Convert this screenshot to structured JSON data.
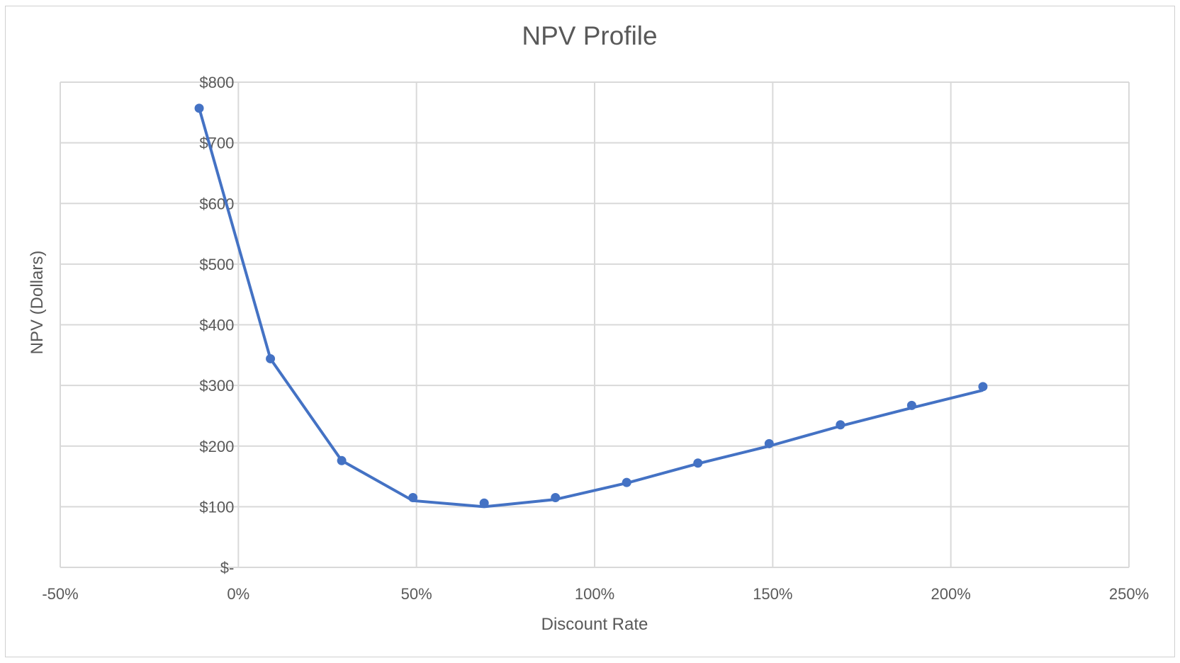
{
  "chart_data": {
    "type": "scatter",
    "title": "NPV Profile",
    "xlabel": "Discount Rate",
    "ylabel": "NPV (Dollars)",
    "xlim": [
      -0.5,
      2.5
    ],
    "ylim": [
      0,
      800
    ],
    "x_tick_values": [
      -0.5,
      0,
      0.5,
      1.0,
      1.5,
      2.0,
      2.5
    ],
    "x_tick_labels": [
      "-50%",
      "0%",
      "50%",
      "100%",
      "150%",
      "200%",
      "250%"
    ],
    "y_tick_values": [
      0,
      100,
      200,
      300,
      400,
      500,
      600,
      700,
      800
    ],
    "y_tick_labels": [
      "$-",
      "$100",
      "$200",
      "$300",
      "$400",
      "$500",
      "$600",
      "$700",
      "$800"
    ],
    "grid": true,
    "series": [
      {
        "color": "#4472c4",
        "points": [
          {
            "x": -0.11,
            "y": 757
          },
          {
            "x": 0.09,
            "y": 344
          },
          {
            "x": 0.29,
            "y": 176
          },
          {
            "x": 0.49,
            "y": 115
          },
          {
            "x": 0.69,
            "y": 106
          },
          {
            "x": 0.89,
            "y": 115
          },
          {
            "x": 1.09,
            "y": 140
          },
          {
            "x": 1.29,
            "y": 172
          },
          {
            "x": 1.49,
            "y": 204
          },
          {
            "x": 1.69,
            "y": 235
          },
          {
            "x": 1.89,
            "y": 267
          },
          {
            "x": 2.09,
            "y": 298
          }
        ],
        "line": [
          {
            "x": -0.11,
            "y": 757
          },
          {
            "x": 0.09,
            "y": 344
          },
          {
            "x": 0.29,
            "y": 176
          },
          {
            "x": 0.49,
            "y": 110
          },
          {
            "x": 0.69,
            "y": 100
          },
          {
            "x": 0.89,
            "y": 112
          },
          {
            "x": 1.09,
            "y": 139
          },
          {
            "x": 1.29,
            "y": 171
          },
          {
            "x": 1.49,
            "y": 200
          },
          {
            "x": 1.69,
            "y": 233
          },
          {
            "x": 1.89,
            "y": 263
          },
          {
            "x": 2.09,
            "y": 292
          }
        ]
      }
    ]
  }
}
